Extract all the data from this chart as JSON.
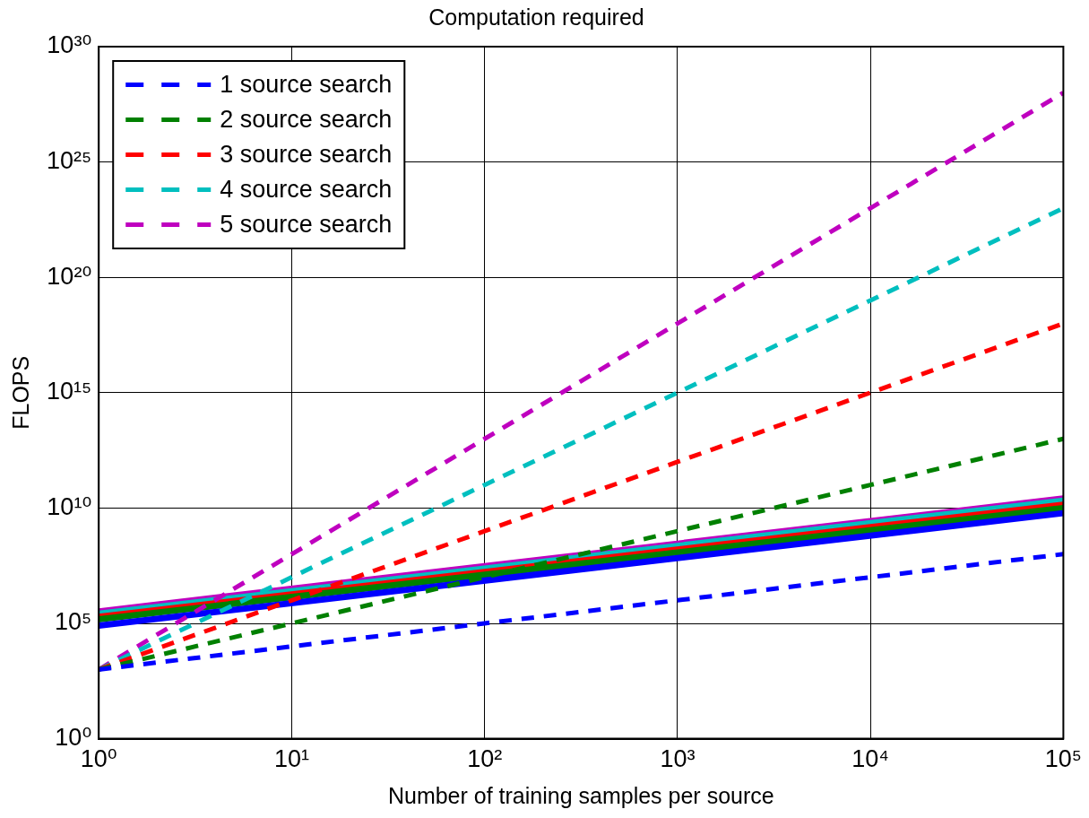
{
  "chart_data": {
    "type": "line",
    "title": "Computation required",
    "xlabel": "Number of training samples per source",
    "ylabel": "FLOPS",
    "log": "xy",
    "grid": true,
    "legend": "top left",
    "marker": "none",
    "xlim": [
      1,
      100000
    ],
    "ylim": [
      1,
      1e+30
    ],
    "xticks": [
      {
        "value": 1,
        "label": "10⁰"
      },
      {
        "value": 10,
        "label": "10¹"
      },
      {
        "value": 100,
        "label": "10²"
      },
      {
        "value": 1000,
        "label": "10³"
      },
      {
        "value": 10000,
        "label": "10⁴"
      },
      {
        "value": 100000,
        "label": "10⁵"
      }
    ],
    "yticks": [
      {
        "value": 1,
        "label": "10⁰"
      },
      {
        "value": 100000.0,
        "label": "10⁵"
      },
      {
        "value": 10000000000.0,
        "label": "10¹⁰"
      },
      {
        "value": 1000000000000000.0,
        "label": "10¹⁵"
      },
      {
        "value": 1e+20,
        "label": "10²⁰"
      },
      {
        "value": 1e+25,
        "label": "10²⁵"
      },
      {
        "value": 1e+30,
        "label": "10³⁰"
      }
    ],
    "series": [
      {
        "name": "1 source search",
        "color": "#0000ff",
        "line_style": "dashed",
        "x": [
          1,
          10,
          100,
          1000,
          10000,
          100000
        ],
        "values": [
          1000.0,
          10000.0,
          100000.0,
          1000000.0,
          10000000.0,
          100000000.0
        ]
      },
      {
        "name": "2 source search",
        "color": "#008000",
        "line_style": "dashed",
        "x": [
          1,
          10,
          100,
          1000,
          10000,
          100000
        ],
        "values": [
          1000.0,
          100000.0,
          10000000.0,
          1000000000.0,
          100000000000.0,
          10000000000000.0
        ]
      },
      {
        "name": "3 source search",
        "color": "#ff0000",
        "line_style": "dashed",
        "x": [
          1,
          10,
          100,
          1000,
          10000,
          100000
        ],
        "values": [
          1000.0,
          1000000.0,
          1000000000.0,
          1000000000000.0,
          1000000000000000.0,
          1e+18
        ]
      },
      {
        "name": "4 source search",
        "color": "#00bfbf",
        "line_style": "dashed",
        "x": [
          1,
          10,
          100,
          1000,
          10000,
          100000
        ],
        "values": [
          1000.0,
          10000000.0,
          100000000000.0,
          1000000000000000.0,
          1e+19,
          1e+23
        ]
      },
      {
        "name": "5 source search",
        "color": "#bf00bf",
        "line_style": "dashed",
        "x": [
          1,
          10,
          100,
          1000,
          10000,
          100000
        ],
        "values": [
          1000.0,
          100000000.0,
          10000000000000.0,
          1e+18,
          1e+23,
          1e+28
        ]
      },
      {
        "color": "#0000ff",
        "line_style": "solid",
        "x": [
          1,
          100000
        ],
        "values": [
          80000.0,
          6000000000.0
        ]
      },
      {
        "color": "#008000",
        "line_style": "solid",
        "x": [
          1,
          100000
        ],
        "values": [
          150000.0,
          10000000000.0
        ]
      },
      {
        "color": "#ff0000",
        "line_style": "solid",
        "x": [
          1,
          100000
        ],
        "values": [
          190000.0,
          14000000000.0
        ]
      },
      {
        "color": "#00bfbf",
        "line_style": "solid",
        "x": [
          1,
          100000
        ],
        "values": [
          260000.0,
          21000000000.0
        ]
      },
      {
        "color": "#bf00bf",
        "line_style": "solid",
        "x": [
          1,
          100000
        ],
        "values": [
          330000.0,
          26000000000.0
        ]
      }
    ]
  }
}
